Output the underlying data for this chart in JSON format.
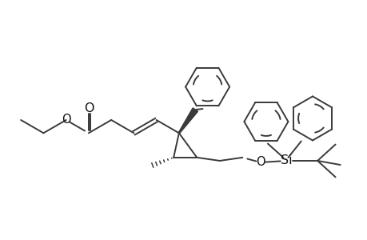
{
  "bg_color": "#ffffff",
  "line_color": "#3a3a3a",
  "line_width": 1.4,
  "font_size": 10.5,
  "figsize": [
    4.6,
    3.0
  ],
  "dpi": 100,
  "xlim": [
    0.3,
    4.8
  ],
  "ylim": [
    0.5,
    2.8
  ]
}
